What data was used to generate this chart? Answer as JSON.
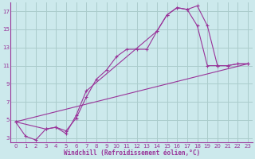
{
  "bg_color": "#cce9ec",
  "grid_color": "#aacccc",
  "line_color": "#993399",
  "marker_color": "#993399",
  "xlabel": "Windchill (Refroidissement éolien,°C)",
  "xlabel_color": "#993399",
  "xlim": [
    -0.5,
    23.5
  ],
  "ylim": [
    2.5,
    18
  ],
  "xticks": [
    0,
    1,
    2,
    3,
    4,
    5,
    6,
    7,
    8,
    9,
    10,
    11,
    12,
    13,
    14,
    15,
    16,
    17,
    18,
    19,
    20,
    21,
    22,
    23
  ],
  "yticks": [
    3,
    5,
    7,
    9,
    11,
    13,
    15,
    17
  ],
  "series1_x": [
    0,
    1,
    2,
    3,
    4,
    5,
    6,
    7,
    8,
    9,
    10,
    11,
    12,
    13,
    14,
    15,
    16,
    17,
    18,
    19,
    20,
    21,
    22,
    23
  ],
  "series1_y": [
    4.8,
    3.2,
    2.8,
    4.0,
    4.2,
    3.8,
    5.2,
    7.5,
    9.5,
    10.5,
    12.0,
    12.8,
    12.8,
    12.8,
    14.8,
    16.6,
    17.4,
    17.2,
    17.6,
    15.4,
    11.0,
    11.0,
    11.2,
    11.2
  ],
  "series2_x": [
    0,
    3,
    4,
    5,
    6,
    7,
    14,
    15,
    16,
    17,
    18,
    19,
    20,
    21,
    22,
    23
  ],
  "series2_y": [
    4.8,
    4.0,
    4.2,
    3.5,
    5.5,
    8.2,
    14.8,
    16.6,
    17.4,
    17.2,
    15.4,
    11.0,
    11.0,
    11.0,
    11.2,
    11.2
  ],
  "series3_x": [
    0,
    23
  ],
  "series3_y": [
    4.8,
    11.2
  ]
}
